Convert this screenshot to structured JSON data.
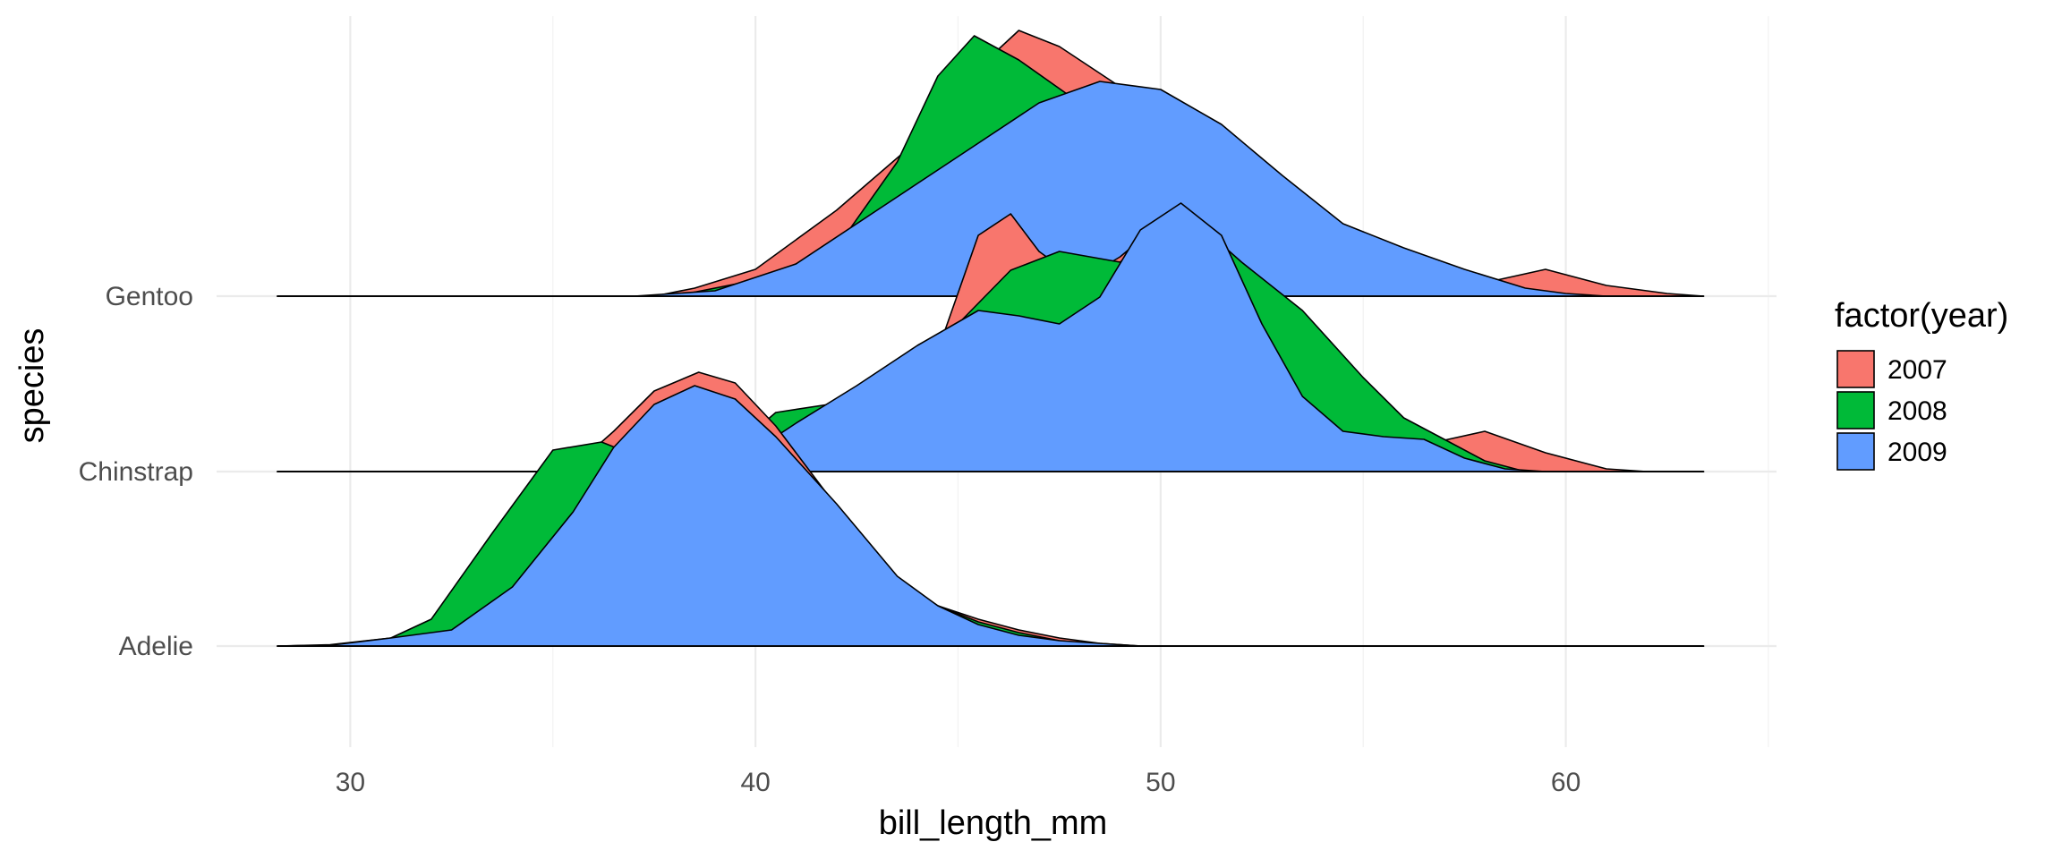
{
  "chart_data": {
    "type": "ridgeline",
    "xlabel": "bill_length_mm",
    "ylabel": "species",
    "xlim": [
      26.7,
      65.2
    ],
    "x_ticks": [
      30,
      40,
      50,
      60
    ],
    "x_tick_labels": [
      "30",
      "40",
      "50",
      "60"
    ],
    "grid": true,
    "categories": [
      "Adelie",
      "Chinstrap",
      "Gentoo"
    ],
    "legend": {
      "title": "factor(year)",
      "position": "right",
      "items": [
        "2007",
        "2008",
        "2009"
      ]
    },
    "colors": {
      "2007": "#F8766D",
      "2008": "#00BA38",
      "2009": "#619CFF"
    },
    "density_range": [
      28.2,
      63.4
    ],
    "series": [
      {
        "category": "Gentoo",
        "group": "2007",
        "points": [
          [
            28.2,
            0
          ],
          [
            37.5,
            0
          ],
          [
            38.5,
            0.03
          ],
          [
            40,
            0.1
          ],
          [
            42,
            0.32
          ],
          [
            44,
            0.58
          ],
          [
            45.5,
            0.85
          ],
          [
            46.5,
            0.99
          ],
          [
            47.5,
            0.93
          ],
          [
            49,
            0.78
          ],
          [
            51,
            0.55
          ],
          [
            53,
            0.32
          ],
          [
            55,
            0.18
          ],
          [
            56.5,
            0.09
          ],
          [
            58,
            0.05
          ],
          [
            59.5,
            0.1
          ],
          [
            61,
            0.04
          ],
          [
            62.5,
            0.01
          ],
          [
            63.4,
            0
          ]
        ]
      },
      {
        "category": "Gentoo",
        "group": "2008",
        "points": [
          [
            28.2,
            0
          ],
          [
            38,
            0
          ],
          [
            40,
            0.06
          ],
          [
            42,
            0.18
          ],
          [
            43.5,
            0.5
          ],
          [
            44.5,
            0.82
          ],
          [
            45.4,
            0.97
          ],
          [
            46.5,
            0.88
          ],
          [
            48,
            0.72
          ],
          [
            50,
            0.62
          ],
          [
            52,
            0.42
          ],
          [
            54,
            0.25
          ],
          [
            55.5,
            0.14
          ],
          [
            57,
            0.05
          ],
          [
            58,
            0.01
          ],
          [
            59,
            0
          ],
          [
            63.4,
            0
          ]
        ]
      },
      {
        "category": "Gentoo",
        "group": "2009",
        "points": [
          [
            28.2,
            0
          ],
          [
            37,
            0
          ],
          [
            39,
            0.02
          ],
          [
            41,
            0.12
          ],
          [
            43,
            0.32
          ],
          [
            45,
            0.52
          ],
          [
            47,
            0.72
          ],
          [
            48.5,
            0.8
          ],
          [
            50,
            0.77
          ],
          [
            51.5,
            0.64
          ],
          [
            53,
            0.45
          ],
          [
            54.5,
            0.27
          ],
          [
            56,
            0.18
          ],
          [
            57.5,
            0.1
          ],
          [
            59,
            0.03
          ],
          [
            60,
            0.01
          ],
          [
            61,
            0
          ],
          [
            63.4,
            0
          ]
        ]
      },
      {
        "category": "Chinstrap",
        "group": "2007",
        "points": [
          [
            28.2,
            0
          ],
          [
            40.5,
            0
          ],
          [
            42,
            0.12
          ],
          [
            43,
            0.25
          ],
          [
            44.5,
            0.45
          ],
          [
            45.5,
            0.88
          ],
          [
            46.3,
            0.96
          ],
          [
            47,
            0.82
          ],
          [
            48,
            0.71
          ],
          [
            49,
            0.8
          ],
          [
            50.5,
            0.99
          ],
          [
            52,
            0.72
          ],
          [
            53,
            0.45
          ],
          [
            54,
            0.22
          ],
          [
            55,
            0.12
          ],
          [
            56.5,
            0.1
          ],
          [
            58,
            0.15
          ],
          [
            59.5,
            0.07
          ],
          [
            61,
            0.01
          ],
          [
            62,
            0
          ],
          [
            63.4,
            0
          ]
        ]
      },
      {
        "category": "Chinstrap",
        "group": "2008",
        "points": [
          [
            28.2,
            0
          ],
          [
            38,
            0
          ],
          [
            39.5,
            0.09
          ],
          [
            40.5,
            0.22
          ],
          [
            41.8,
            0.25
          ],
          [
            43,
            0.3
          ],
          [
            45,
            0.55
          ],
          [
            46.3,
            0.75
          ],
          [
            47.5,
            0.82
          ],
          [
            49,
            0.78
          ],
          [
            50.5,
            0.98
          ],
          [
            52,
            0.78
          ],
          [
            53.5,
            0.6
          ],
          [
            55,
            0.35
          ],
          [
            56,
            0.2
          ],
          [
            57,
            0.12
          ],
          [
            58,
            0.04
          ],
          [
            59,
            0
          ],
          [
            63.4,
            0
          ]
        ]
      },
      {
        "category": "Chinstrap",
        "group": "2009",
        "points": [
          [
            28.2,
            0
          ],
          [
            39,
            0
          ],
          [
            40,
            0.08
          ],
          [
            41,
            0.18
          ],
          [
            42.5,
            0.32
          ],
          [
            44,
            0.47
          ],
          [
            45.5,
            0.6
          ],
          [
            46.5,
            0.58
          ],
          [
            47.5,
            0.55
          ],
          [
            48.5,
            0.65
          ],
          [
            49.5,
            0.9
          ],
          [
            50.5,
            1.0
          ],
          [
            51.5,
            0.88
          ],
          [
            52.5,
            0.55
          ],
          [
            53.5,
            0.28
          ],
          [
            54.5,
            0.15
          ],
          [
            55.5,
            0.13
          ],
          [
            56.5,
            0.12
          ],
          [
            57.5,
            0.05
          ],
          [
            58.5,
            0.01
          ],
          [
            59.5,
            0
          ],
          [
            63.4,
            0
          ]
        ]
      },
      {
        "category": "Adelie",
        "group": "2007",
        "points": [
          [
            28.2,
            0
          ],
          [
            29.5,
            0.003
          ],
          [
            31,
            0.02
          ],
          [
            32,
            0.07
          ],
          [
            33.5,
            0.3
          ],
          [
            35,
            0.6
          ],
          [
            36.5,
            0.8
          ],
          [
            37.5,
            0.95
          ],
          [
            38.6,
            1.02
          ],
          [
            39.5,
            0.98
          ],
          [
            40.5,
            0.82
          ],
          [
            42,
            0.52
          ],
          [
            43.5,
            0.25
          ],
          [
            44.5,
            0.15
          ],
          [
            45.5,
            0.1
          ],
          [
            46.5,
            0.06
          ],
          [
            47.5,
            0.03
          ],
          [
            48.5,
            0.01
          ],
          [
            49.5,
            0
          ],
          [
            63.4,
            0
          ]
        ]
      },
      {
        "category": "Adelie",
        "group": "2008",
        "points": [
          [
            28.2,
            0
          ],
          [
            29.5,
            0.005
          ],
          [
            31,
            0.03
          ],
          [
            32,
            0.1
          ],
          [
            33.5,
            0.42
          ],
          [
            35,
            0.73
          ],
          [
            36.2,
            0.76
          ],
          [
            37.2,
            0.7
          ],
          [
            38.5,
            0.96
          ],
          [
            39.5,
            0.92
          ],
          [
            41,
            0.63
          ],
          [
            42.5,
            0.38
          ],
          [
            43.5,
            0.25
          ],
          [
            44.5,
            0.15
          ],
          [
            45.5,
            0.09
          ],
          [
            46.5,
            0.05
          ],
          [
            47.5,
            0.02
          ],
          [
            48.5,
            0.005
          ],
          [
            49.5,
            0
          ],
          [
            63.4,
            0
          ]
        ]
      },
      {
        "category": "Adelie",
        "group": "2009",
        "points": [
          [
            28.2,
            0
          ],
          [
            29.5,
            0.003
          ],
          [
            31,
            0.03
          ],
          [
            32.5,
            0.06
          ],
          [
            34,
            0.22
          ],
          [
            35.5,
            0.5
          ],
          [
            36.5,
            0.74
          ],
          [
            37.5,
            0.9
          ],
          [
            38.5,
            0.97
          ],
          [
            39.5,
            0.92
          ],
          [
            40.5,
            0.78
          ],
          [
            42,
            0.53
          ],
          [
            43.5,
            0.26
          ],
          [
            44.5,
            0.15
          ],
          [
            45.5,
            0.08
          ],
          [
            46.5,
            0.04
          ],
          [
            47.5,
            0.02
          ],
          [
            48.5,
            0.01
          ],
          [
            49.5,
            0
          ],
          [
            63.4,
            0
          ]
        ]
      }
    ]
  }
}
